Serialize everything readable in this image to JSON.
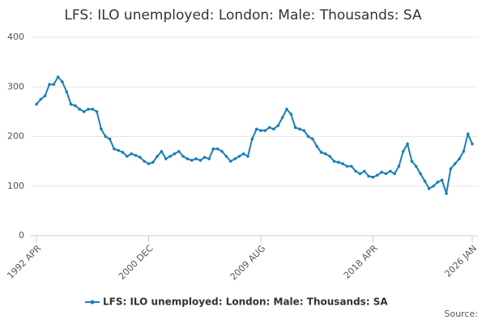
{
  "chart_data": {
    "type": "line",
    "title": "LFS: ILO unemployed: London: Male: Thousands: SA",
    "source": "Source:",
    "categories": [
      "1992 APR",
      null,
      null,
      null,
      null,
      null,
      null,
      null,
      null,
      null,
      null,
      null,
      null,
      null,
      null,
      null,
      null,
      null,
      null,
      null,
      null,
      null,
      null,
      null,
      null,
      null,
      "2000 DEC",
      null,
      null,
      null,
      null,
      null,
      null,
      null,
      null,
      null,
      null,
      null,
      null,
      null,
      null,
      null,
      null,
      null,
      null,
      null,
      null,
      null,
      null,
      null,
      null,
      null,
      "2009 AUG",
      null,
      null,
      null,
      null,
      null,
      null,
      null,
      null,
      null,
      null,
      null,
      null,
      null,
      null,
      null,
      null,
      null,
      null,
      null,
      null,
      null,
      null,
      null,
      null,
      null,
      "2018 APR",
      null,
      null,
      null,
      null,
      null,
      null,
      null,
      null,
      null,
      null,
      null,
      null,
      null,
      null,
      null,
      null,
      null,
      null,
      null,
      null,
      null,
      null,
      "2026 JAN"
    ],
    "series": [
      {
        "name": "LFS: ILO unemployed: London: Male: Thousands: SA",
        "color": "#1a7fb8",
        "values": [
          265,
          275,
          282,
          305,
          305,
          320,
          310,
          290,
          265,
          262,
          255,
          250,
          255,
          255,
          250,
          215,
          200,
          195,
          175,
          172,
          168,
          160,
          165,
          162,
          158,
          150,
          145,
          148,
          160,
          170,
          155,
          160,
          165,
          170,
          160,
          155,
          152,
          155,
          152,
          158,
          155,
          175,
          175,
          170,
          160,
          150,
          155,
          160,
          165,
          160,
          195,
          215,
          212,
          212,
          218,
          215,
          222,
          238,
          255,
          245,
          218,
          215,
          212,
          200,
          195,
          180,
          168,
          165,
          160,
          150,
          148,
          145,
          140,
          140,
          130,
          125,
          130,
          120,
          118,
          122,
          128,
          125,
          130,
          125,
          140,
          170,
          185,
          150,
          140,
          125,
          110,
          95,
          100,
          108,
          112,
          85,
          135,
          145,
          155,
          170,
          205,
          185
        ]
      }
    ],
    "ylim": [
      0,
      400
    ],
    "yticks": [
      0,
      100,
      200,
      300,
      400
    ],
    "grid": true
  }
}
